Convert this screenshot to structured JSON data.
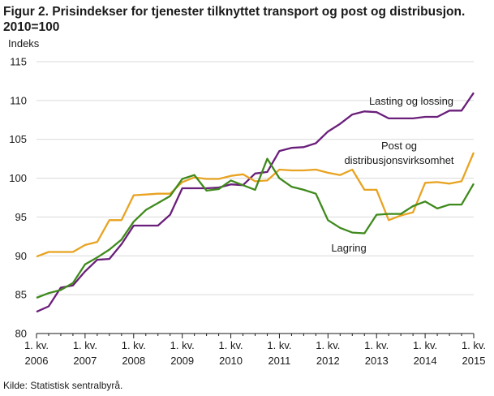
{
  "title": "Figur 2. Prisindekser for tjenester tilknyttet transport og post og distribusjon. 2010=100",
  "source": "Kilde: Statistisk sentralbyrå.",
  "chart_data": {
    "type": "line",
    "ylabel": "Indeks",
    "ylim": [
      80,
      115
    ],
    "yticks": [
      80,
      85,
      90,
      95,
      100,
      105,
      110,
      115
    ],
    "grid": true,
    "x_tick_labels": [
      [
        "1. kv.",
        "2006"
      ],
      [
        "1. kv.",
        "2007"
      ],
      [
        "1. kv.",
        "2008"
      ],
      [
        "1. kv.",
        "2009"
      ],
      [
        "1. kv.",
        "2010"
      ],
      [
        "1. kv.",
        "2011"
      ],
      [
        "1. kv.",
        "2012"
      ],
      [
        "1. kv.",
        "2013"
      ],
      [
        "1. kv.",
        "2014"
      ],
      [
        "1. kv.",
        "2015"
      ]
    ],
    "x": [
      "2006K1",
      "2006K2",
      "2006K3",
      "2006K4",
      "2007K1",
      "2007K2",
      "2007K3",
      "2007K4",
      "2008K1",
      "2008K2",
      "2008K3",
      "2008K4",
      "2009K1",
      "2009K2",
      "2009K3",
      "2009K4",
      "2010K1",
      "2010K2",
      "2010K3",
      "2010K4",
      "2011K1",
      "2011K2",
      "2011K3",
      "2011K4",
      "2012K1",
      "2012K2",
      "2012K3",
      "2012K4",
      "2013K1",
      "2013K2",
      "2013K3",
      "2013K4",
      "2014K1",
      "2014K2",
      "2014K3",
      "2014K4",
      "2015K1"
    ],
    "series": [
      {
        "name": "Lasting og lossing",
        "color": "#6a1f7a",
        "values": [
          82.8,
          83.5,
          85.9,
          86.2,
          88.0,
          89.5,
          89.6,
          91.5,
          93.9,
          93.9,
          93.9,
          95.3,
          98.7,
          98.7,
          98.7,
          98.8,
          99.2,
          99.1,
          100.6,
          100.8,
          103.5,
          103.9,
          104.0,
          104.5,
          106.0,
          107.0,
          108.2,
          108.6,
          108.5,
          107.7,
          107.7,
          107.7,
          107.9,
          107.9,
          108.7,
          108.7,
          111.0
        ]
      },
      {
        "name": "Post og distribusjonsvirksomhet",
        "color": "#e8a321",
        "values": [
          89.9,
          90.5,
          90.5,
          90.5,
          91.4,
          91.8,
          94.6,
          94.6,
          97.8,
          97.9,
          98.0,
          98.0,
          99.5,
          100.1,
          99.9,
          99.9,
          100.3,
          100.5,
          99.6,
          99.7,
          101.1,
          101.0,
          101.0,
          101.1,
          100.7,
          100.4,
          101.1,
          98.5,
          98.5,
          94.6,
          95.2,
          95.6,
          99.4,
          99.5,
          99.3,
          99.6,
          103.3
        ]
      },
      {
        "name": "Lagring",
        "color": "#3f8a1c",
        "values": [
          84.6,
          85.2,
          85.6,
          86.5,
          88.9,
          89.8,
          90.8,
          92.1,
          94.4,
          95.9,
          96.8,
          97.7,
          99.9,
          100.4,
          98.4,
          98.6,
          99.7,
          99.1,
          98.5,
          102.5,
          100.0,
          98.9,
          98.5,
          98.0,
          94.6,
          93.6,
          93.0,
          92.9,
          95.3,
          95.4,
          95.4,
          96.4,
          97.0,
          96.1,
          96.6,
          96.6,
          99.3
        ]
      }
    ],
    "annotations": [
      {
        "series": "Lasting og lossing",
        "lines": [
          "Lasting og lossing"
        ]
      },
      {
        "series": "Post og distribusjonsvirksomhet",
        "lines": [
          "Post og",
          "distribusjonsvirksomhet"
        ]
      },
      {
        "series": "Lagring",
        "lines": [
          "Lagring"
        ]
      }
    ]
  }
}
